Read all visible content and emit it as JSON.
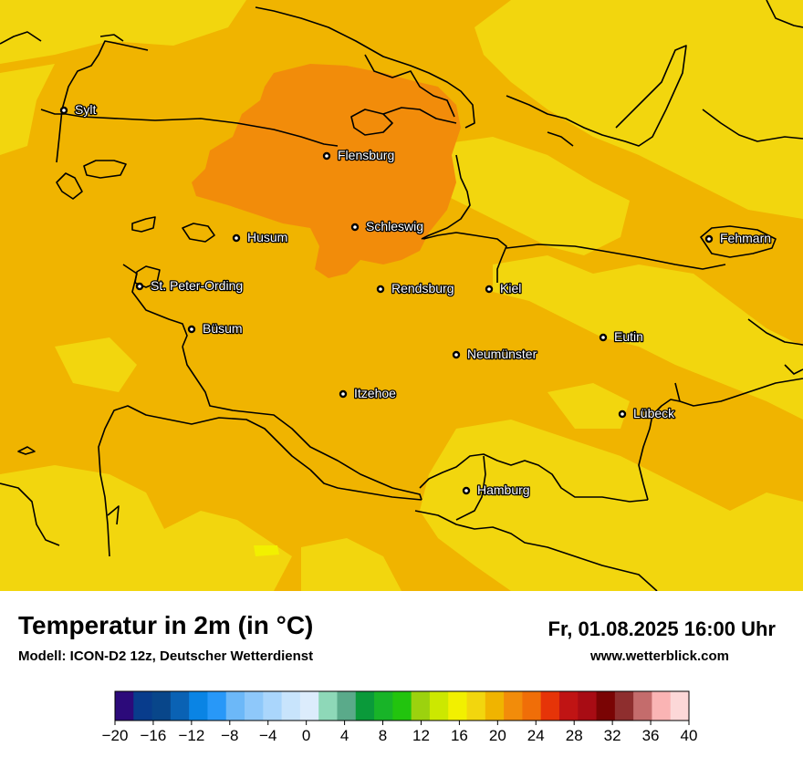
{
  "map": {
    "colors": {
      "land_base": "#f0b400",
      "warm_patch": "#f28c0a",
      "cool_patch": "#f2d60e",
      "coolest_patch": "#f2f000",
      "coastline": "#000000"
    },
    "cities": [
      {
        "name": "Sylt"
      },
      {
        "name": "Flensburg"
      },
      {
        "name": "Schleswig"
      },
      {
        "name": "Husum"
      },
      {
        "name": "Fehmarn"
      },
      {
        "name": "St. Peter-Ording"
      },
      {
        "name": "Rendsburg"
      },
      {
        "name": "Kiel"
      },
      {
        "name": "Büsum"
      },
      {
        "name": "Eutin"
      },
      {
        "name": "Neumünster"
      },
      {
        "name": "Itzehoe"
      },
      {
        "name": "Lübeck"
      },
      {
        "name": "Hamburg"
      }
    ]
  },
  "footer": {
    "title": "Temperatur in 2m (in °C)",
    "model": "Modell: ICON-D2 12z, Deutscher Wetterdienst",
    "datetime": "Fr, 01.08.2025 16:00 Uhr",
    "website": "www.wetterblick.com"
  },
  "scale": {
    "colors": [
      "#2c0a7a",
      "#083c8c",
      "#08468a",
      "#0a62b4",
      "#0a84e4",
      "#2898f8",
      "#6cb8f8",
      "#8ec8fa",
      "#aad6fc",
      "#c8e4fc",
      "#dcecfc",
      "#8ed8b8",
      "#5aaa8a",
      "#0a9a3a",
      "#18b428",
      "#22c40e",
      "#9cd20e",
      "#cce800",
      "#f2f000",
      "#f2d60e",
      "#f0b400",
      "#f28c0a",
      "#f06e08",
      "#e63408",
      "#c01414",
      "#a80c14",
      "#7a0404",
      "#8e2e2e",
      "#c46c6c",
      "#fab4b4",
      "#fcd8d8"
    ],
    "ticks": [
      "−20",
      "−16",
      "−12",
      "−8",
      "−4",
      "0",
      "4",
      "8",
      "12",
      "16",
      "20",
      "24",
      "28",
      "32",
      "36",
      "40"
    ]
  }
}
